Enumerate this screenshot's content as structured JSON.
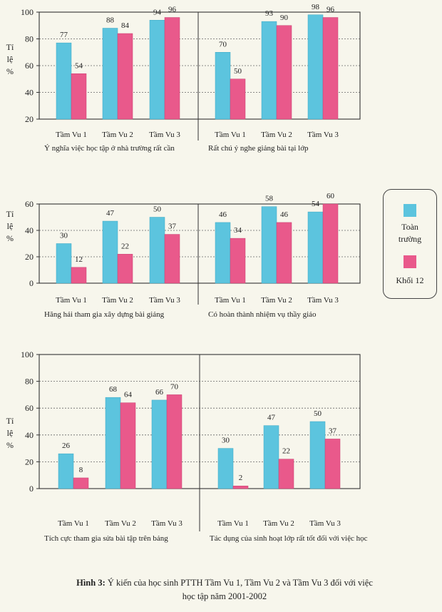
{
  "legend": {
    "series_1": "Toàn",
    "series_1_line2": "trường",
    "series_2": "Khối 12",
    "color_1": "#5cc4de",
    "color_2": "#e9598b"
  },
  "caption": {
    "label": "Hình 3:",
    "text": " Ý kiến của học sinh PTTH Tầm Vu 1, Tầm Vu 2 và Tầm Vu 3 đối với việc",
    "line2": "học tập năm 2001-2002"
  },
  "y_axis_label": [
    "Tỉ",
    "lệ",
    "%"
  ],
  "chart_data": [
    {
      "type": "bar",
      "ylim": [
        20,
        100
      ],
      "yticks": [
        20,
        40,
        60,
        80,
        100
      ],
      "panels": [
        {
          "title": "Ý nghĩa việc học tập ở nhà trường rất cần",
          "categories": [
            "Tầm Vu 1",
            "Tầm Vu 2",
            "Tầm Vu 3"
          ],
          "series": [
            {
              "name": "Toàn trường",
              "values": [
                77,
                88,
                94
              ]
            },
            {
              "name": "Khối 12",
              "values": [
                54,
                84,
                96
              ]
            }
          ]
        },
        {
          "title": "Rất chú ý nghe giảng bài tại lớp",
          "categories": [
            "Tầm Vu 1",
            "Tầm Vu 2",
            "Tầm Vu 3"
          ],
          "series": [
            {
              "name": "Toàn trường",
              "values": [
                70,
                93,
                98
              ]
            },
            {
              "name": "Khối 12",
              "values": [
                50,
                90,
                96
              ]
            }
          ]
        }
      ]
    },
    {
      "type": "bar",
      "ylim": [
        0,
        60
      ],
      "yticks": [
        0,
        20,
        40,
        60
      ],
      "panels": [
        {
          "title": "Hăng hái tham gia xây dựng bài giảng",
          "categories": [
            "Tầm Vu 1",
            "Tầm Vu 2",
            "Tầm Vu 3"
          ],
          "series": [
            {
              "name": "Toàn trường",
              "values": [
                30,
                47,
                50
              ]
            },
            {
              "name": "Khối 12",
              "values": [
                12,
                22,
                37
              ]
            }
          ]
        },
        {
          "title": "Có hoàn thành nhiệm vụ thầy giáo",
          "categories": [
            "Tầm Vu 1",
            "Tầm Vu 2",
            "Tầm Vu 3"
          ],
          "series": [
            {
              "name": "Toàn trường",
              "values": [
                46,
                58,
                54
              ]
            },
            {
              "name": "Khối 12",
              "values": [
                34,
                46,
                60
              ]
            }
          ]
        }
      ]
    },
    {
      "type": "bar",
      "ylim": [
        0,
        100
      ],
      "yticks": [
        0,
        20,
        40,
        60,
        80,
        100
      ],
      "panels": [
        {
          "title": "Tích cực tham gia sửa bài tập trên bảng",
          "categories": [
            "Tầm Vu 1",
            "Tầm Vu 2",
            "Tầm Vu 3"
          ],
          "series": [
            {
              "name": "Toàn trường",
              "values": [
                26,
                68,
                66
              ]
            },
            {
              "name": "Khối 12",
              "values": [
                8,
                64,
                70
              ]
            }
          ]
        },
        {
          "title": "Tác dụng của sinh hoạt lớp rất tốt đối với việc học",
          "categories": [
            "Tầm Vu 1",
            "Tầm Vu 2",
            "Tầm Vu 3"
          ],
          "series": [
            {
              "name": "Toàn trường",
              "values": [
                30,
                47,
                50
              ]
            },
            {
              "name": "Khối 12",
              "values": [
                2,
                22,
                37
              ]
            }
          ]
        }
      ]
    }
  ]
}
